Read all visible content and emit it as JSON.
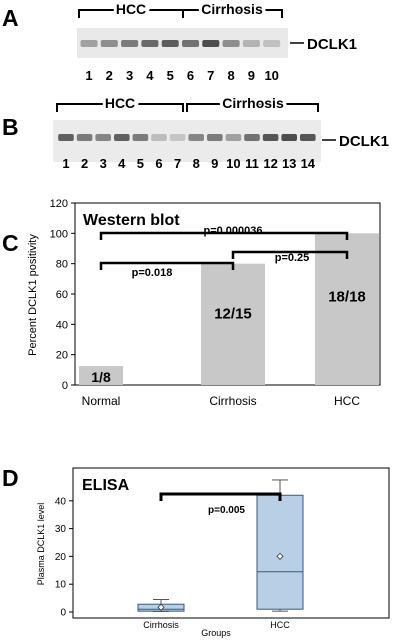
{
  "panels": {
    "A": {
      "letter": "A",
      "groups": [
        "HCC",
        "Cirrhosis"
      ],
      "marker": "DCLK1",
      "lanes": [
        "1",
        "2",
        "3",
        "4",
        "5",
        "6",
        "7",
        "8",
        "9",
        "10"
      ],
      "band_intensity": [
        0.35,
        0.45,
        0.55,
        0.65,
        0.72,
        0.6,
        0.8,
        0.45,
        0.25,
        0.18
      ]
    },
    "B": {
      "letter": "B",
      "groups": [
        "HCC",
        "Cirrhosis"
      ],
      "marker": "DCLK1",
      "lanes": [
        "1",
        "2",
        "3",
        "4",
        "5",
        "6",
        "7",
        "8",
        "9",
        "10",
        "11",
        "12",
        "13",
        "14"
      ],
      "band_intensity": [
        0.7,
        0.55,
        0.5,
        0.7,
        0.55,
        0.2,
        0.15,
        0.5,
        0.55,
        0.35,
        0.6,
        0.75,
        0.8,
        0.75
      ]
    },
    "C": {
      "letter": "C"
    },
    "D": {
      "letter": "D"
    }
  },
  "chart_data": [
    {
      "type": "bar",
      "title": "Western blot",
      "ylabel": "Percent DCLK1 positivity",
      "xlabel": "",
      "categories": [
        "Normal",
        "Cirrhosis",
        "HCC"
      ],
      "values": [
        12.5,
        80,
        100
      ],
      "bar_labels": [
        "1/8",
        "12/15",
        "18/18"
      ],
      "ylim": [
        0,
        120
      ],
      "yticks": [
        0,
        20,
        40,
        60,
        80,
        100,
        120
      ],
      "bar_color": "#c8c8c8",
      "comparisons": [
        {
          "from": "Normal",
          "to": "HCC",
          "label": "p=0.000036"
        },
        {
          "from": "Normal",
          "to": "Cirrhosis",
          "label": "p=0.018"
        },
        {
          "from": "Cirrhosis",
          "to": "HCC",
          "label": "p=0.25"
        }
      ]
    },
    {
      "type": "box",
      "title": "ELISA",
      "ylabel": "Plasma DCLK1 level",
      "xlabel": "Groups",
      "categories": [
        "Cirrhosis",
        "HCC"
      ],
      "ylim": [
        0,
        50
      ],
      "yticks": [
        0,
        10,
        20,
        30,
        40
      ],
      "box_color": "#b8cfe6",
      "boxes": [
        {
          "name": "Cirrhosis",
          "min": 0.2,
          "q1": 0.3,
          "median": 1.0,
          "q3": 2.8,
          "max": 4.5,
          "mean": 1.7
        },
        {
          "name": "HCC",
          "min": 0.3,
          "q1": 1.0,
          "median": 14.5,
          "q3": 42,
          "max": 47.5,
          "mean": 20
        }
      ],
      "comparisons": [
        {
          "from": "Cirrhosis",
          "to": "HCC",
          "label": "p=0.005"
        }
      ]
    }
  ]
}
